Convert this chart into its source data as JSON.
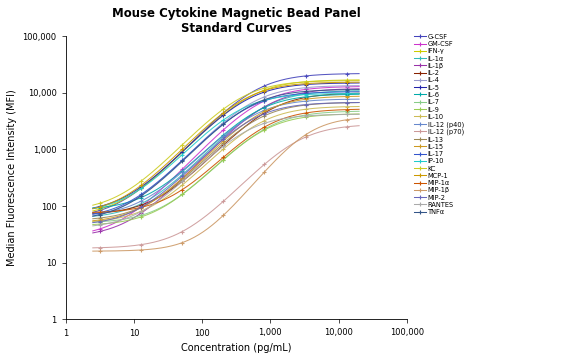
{
  "title_line1": "Mouse Cytokine Magnetic Bead Panel",
  "title_line2": "Standard Curves",
  "xlabel": "Concentration (pg/mL)",
  "ylabel": "Median Fluorescence Intensity (MFI)",
  "xlim": [
    1,
    100000
  ],
  "ylim": [
    1,
    100000
  ],
  "x_conc": [
    3.2,
    12.8,
    51.2,
    204.8,
    819.2,
    3276.8,
    13107.2
  ],
  "series": [
    {
      "name": "G-CSF",
      "color": "#4444bb",
      "marker": "+",
      "top": 22000,
      "mid": 600,
      "hill": 1.3,
      "base": 60
    },
    {
      "name": "GM-CSF",
      "color": "#cc33cc",
      "marker": "+",
      "top": 13000,
      "mid": 700,
      "hill": 1.3,
      "base": 28
    },
    {
      "name": "IFN-γ",
      "color": "#cccc00",
      "marker": "+",
      "top": 17000,
      "mid": 500,
      "hill": 1.3,
      "base": 65
    },
    {
      "name": "IL-1α",
      "color": "#33bbbb",
      "marker": "+",
      "top": 11000,
      "mid": 800,
      "hill": 1.3,
      "base": 60
    },
    {
      "name": "IL-1β",
      "color": "#9933aa",
      "marker": "+",
      "top": 12000,
      "mid": 900,
      "hill": 1.3,
      "base": 28
    },
    {
      "name": "IL-2",
      "color": "#882200",
      "marker": "+",
      "top": 10000,
      "mid": 1000,
      "hill": 1.3,
      "base": 70
    },
    {
      "name": "IL-4",
      "color": "#9999cc",
      "marker": "+",
      "top": 13500,
      "mid": 550,
      "hill": 1.3,
      "base": 55
    },
    {
      "name": "IL-5",
      "color": "#2222aa",
      "marker": "+",
      "top": 15000,
      "mid": 450,
      "hill": 1.3,
      "base": 75
    },
    {
      "name": "IL-6",
      "color": "#00aaaa",
      "marker": "+",
      "top": 9500,
      "mid": 650,
      "hill": 1.3,
      "base": 85
    },
    {
      "name": "IL-7",
      "color": "#88cc88",
      "marker": "+",
      "top": 4800,
      "mid": 900,
      "hill": 1.3,
      "base": 50
    },
    {
      "name": "IL-9",
      "color": "#99cc55",
      "marker": "+",
      "top": 4300,
      "mid": 800,
      "hill": 1.3,
      "base": 45
    },
    {
      "name": "IL-10",
      "color": "#ccbb55",
      "marker": "+",
      "top": 5800,
      "mid": 700,
      "hill": 1.3,
      "base": 50
    },
    {
      "name": "IL-12 (p40)",
      "color": "#6688cc",
      "marker": "+",
      "top": 7800,
      "mid": 550,
      "hill": 1.3,
      "base": 65
    },
    {
      "name": "IL-12 (p70)",
      "color": "#cc9999",
      "marker": "+",
      "top": 2800,
      "mid": 2500,
      "hill": 1.3,
      "base": 18
    },
    {
      "name": "IL-13",
      "color": "#998855",
      "marker": "+",
      "top": 6800,
      "mid": 650,
      "hill": 1.3,
      "base": 55
    },
    {
      "name": "IL-15",
      "color": "#cc9922",
      "marker": "+",
      "top": 8800,
      "mid": 750,
      "hill": 1.3,
      "base": 50
    },
    {
      "name": "IL-17",
      "color": "#3355cc",
      "marker": "+",
      "top": 10500,
      "mid": 450,
      "hill": 1.3,
      "base": 60
    },
    {
      "name": "IP-10",
      "color": "#22cccc",
      "marker": "+",
      "top": 9800,
      "mid": 350,
      "hill": 1.3,
      "base": 75
    },
    {
      "name": "KC",
      "color": "#cccc22",
      "marker": "+",
      "top": 16500,
      "mid": 380,
      "hill": 1.3,
      "base": 80
    },
    {
      "name": "MCP-1",
      "color": "#cc9900",
      "marker": "+",
      "top": 15500,
      "mid": 420,
      "hill": 1.3,
      "base": 70
    },
    {
      "name": "MIP-1α",
      "color": "#cc5500",
      "marker": "+",
      "top": 5200,
      "mid": 900,
      "hill": 1.3,
      "base": 75
    },
    {
      "name": "MIP-1β",
      "color": "#cc9966",
      "marker": "+",
      "top": 3800,
      "mid": 3500,
      "hill": 1.5,
      "base": 16
    },
    {
      "name": "MIP-2",
      "color": "#6666bb",
      "marker": "+",
      "top": 6800,
      "mid": 550,
      "hill": 1.3,
      "base": 45
    },
    {
      "name": "RANTES",
      "color": "#aaaaaa",
      "marker": "+",
      "top": 4200,
      "mid": 450,
      "hill": 1.3,
      "base": 40
    },
    {
      "name": "TNFα",
      "color": "#335588",
      "marker": "+",
      "top": 11500,
      "mid": 500,
      "hill": 1.3,
      "base": 55
    }
  ]
}
